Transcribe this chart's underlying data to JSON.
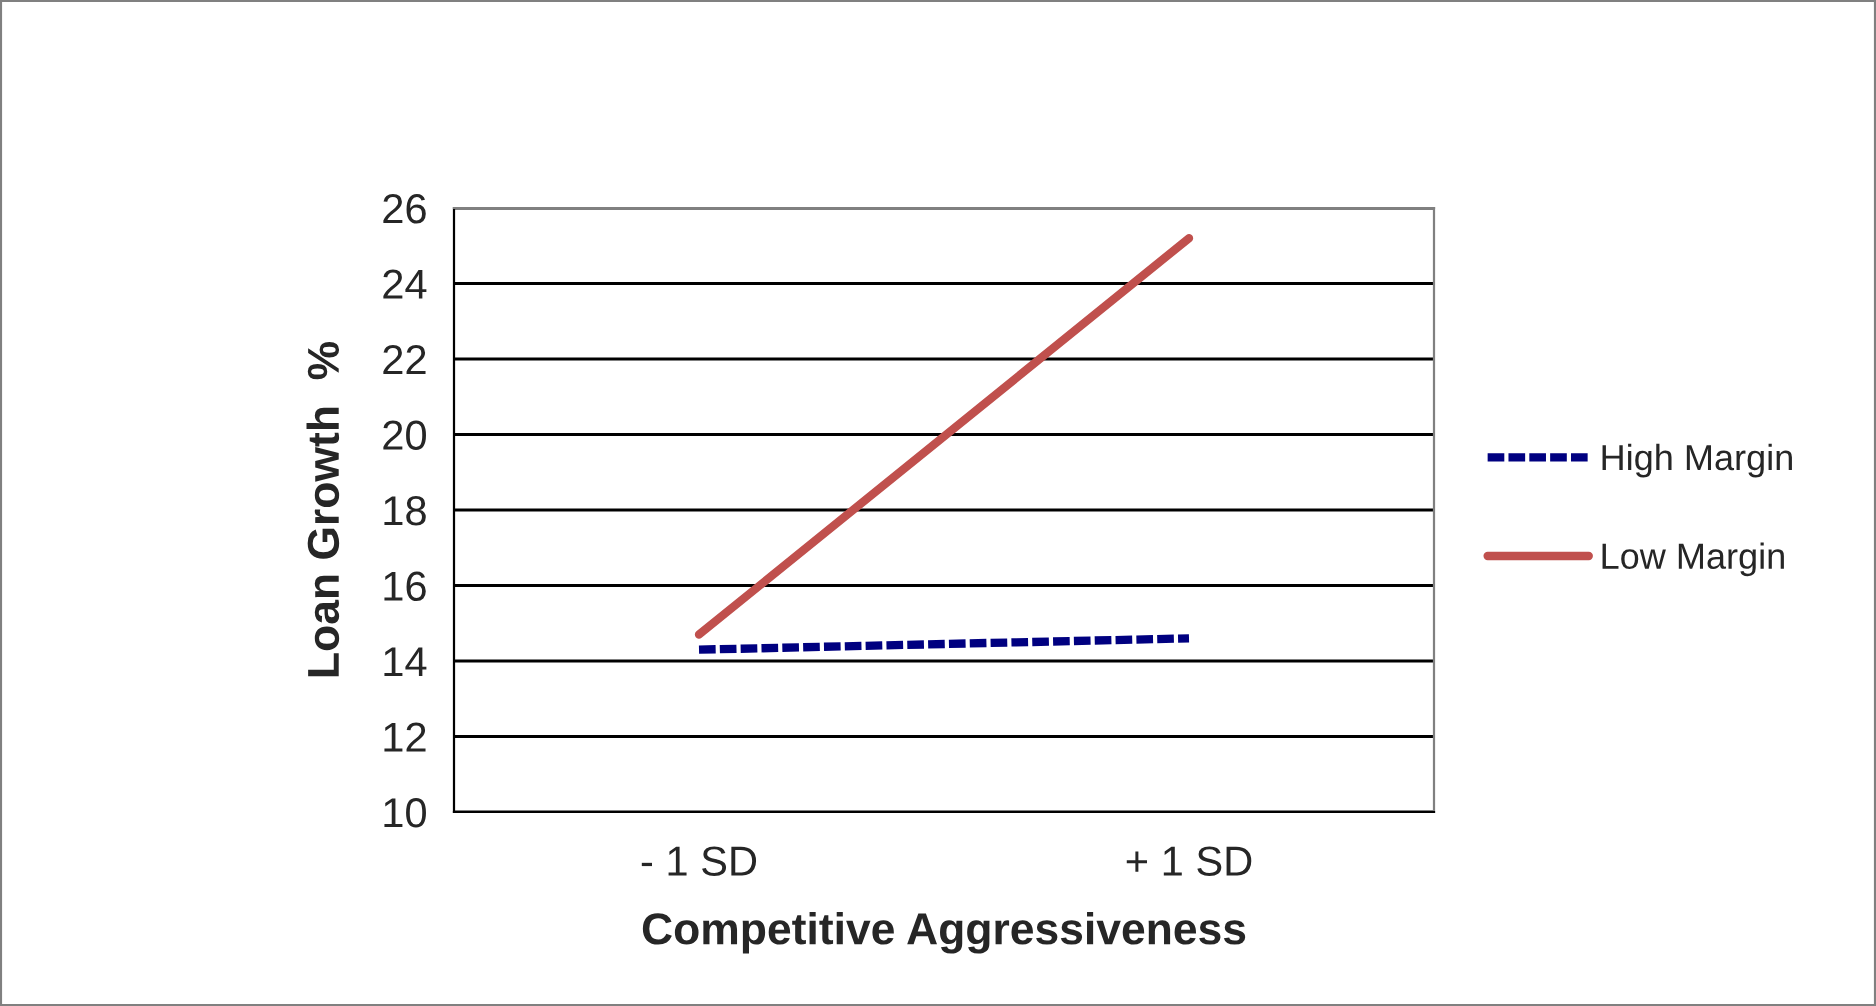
{
  "chart_data": {
    "type": "line",
    "xlabel": "Competitive Aggressiveness",
    "ylabel": "Loan Growth  %",
    "categories": [
      "- 1 SD",
      "+ 1 SD"
    ],
    "series": [
      {
        "name": "High Margin",
        "color": "#000080",
        "line_style": "dashed",
        "values": [
          14.3,
          14.6
        ]
      },
      {
        "name": "Low Margin",
        "color": "#c0504d",
        "line_style": "solid",
        "values": [
          14.7,
          25.2
        ]
      }
    ],
    "ylim": [
      10,
      26
    ],
    "yticks": [
      10,
      12,
      14,
      16,
      18,
      20,
      22,
      24,
      26
    ],
    "grid": "y",
    "legend": "right",
    "marker": "none"
  }
}
